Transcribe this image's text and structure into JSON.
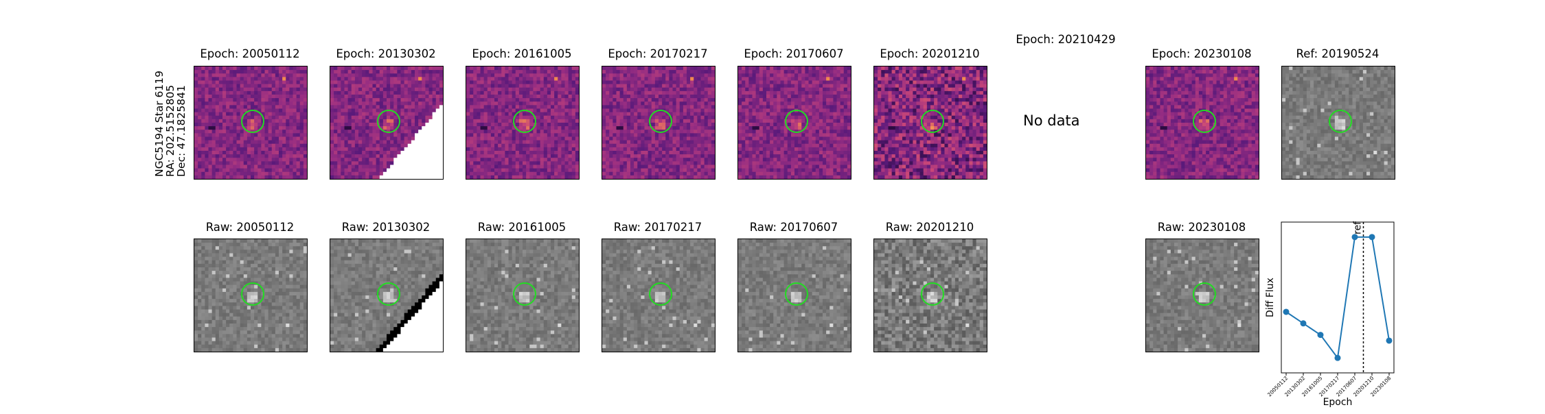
{
  "star": {
    "line1": "NGC5194 Star 6119",
    "line2": "RA: 202.5152805",
    "line3": "Dec: 47.1825841"
  },
  "diff_row": [
    {
      "title": "Epoch: 20050112",
      "style": "diff",
      "has_data": true
    },
    {
      "title": "Epoch: 20130302",
      "style": "diff-edge",
      "has_data": true
    },
    {
      "title": "Epoch: 20161005",
      "style": "diff",
      "has_data": true
    },
    {
      "title": "Epoch: 20170217",
      "style": "diff",
      "has_data": true
    },
    {
      "title": "Epoch: 20170607",
      "style": "diff",
      "has_data": true
    },
    {
      "title": "Epoch: 20201210",
      "style": "diff-noisy",
      "has_data": true
    },
    {
      "title": "Epoch: 20210429",
      "style": "none",
      "has_data": false,
      "message": "No data"
    },
    {
      "title": "Epoch: 20230108",
      "style": "diff",
      "has_data": true
    },
    {
      "title": "Ref: 20190524",
      "style": "raw",
      "has_data": true
    }
  ],
  "raw_row": [
    {
      "title": "Raw: 20050112",
      "style": "raw"
    },
    {
      "title": "Raw: 20130302",
      "style": "raw-edge"
    },
    {
      "title": "Raw: 20161005",
      "style": "raw"
    },
    {
      "title": "Raw: 20170217",
      "style": "raw"
    },
    {
      "title": "Raw: 20170607",
      "style": "raw"
    },
    {
      "title": "Raw: 20201210",
      "style": "raw-noisy"
    },
    {
      "title": "Raw: 20230108",
      "style": "raw"
    }
  ],
  "colors": {
    "circle": "#22dd22",
    "line": "#1f77b4",
    "diff_dark": "#5a1a7a",
    "diff_mid": "#b53f86",
    "diff_bright": "#f08a50"
  },
  "chart_data": {
    "type": "line",
    "x": [
      "20050112",
      "20130302",
      "20161005",
      "20170217",
      "20170607",
      "20201210",
      "20230108"
    ],
    "series": [
      {
        "values": [
          0.35,
          0.25,
          0.15,
          -0.05,
          1.0,
          1.0,
          0.1
        ]
      }
    ],
    "xlabel": "Epoch",
    "ylabel": "Diff Flux",
    "reference_line": {
      "label": "ref",
      "position_between": [
        "20170607",
        "20201210"
      ]
    },
    "ylim": [
      -0.18,
      1.13
    ],
    "grid": false
  }
}
